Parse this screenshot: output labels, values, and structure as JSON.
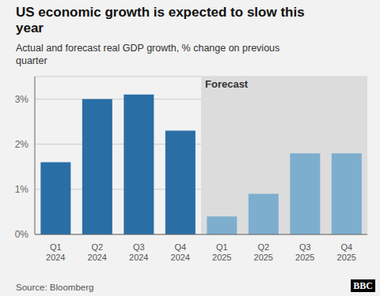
{
  "chart_data": {
    "type": "bar",
    "title": "US economic growth is expected to slow this\nyear",
    "subtitle": "Actual and forecast real GDP growth, % change on previous\nquarter",
    "categories": [
      "Q1\n2024",
      "Q2\n2024",
      "Q3\n2024",
      "Q4\n2024",
      "Q1\n2025",
      "Q2\n2025",
      "Q3\n2025",
      "Q4\n2025"
    ],
    "values": [
      1.6,
      3.0,
      3.1,
      2.3,
      0.4,
      0.9,
      1.8,
      1.8
    ],
    "colors": [
      "#2A6EA6",
      "#2A6EA6",
      "#2A6EA6",
      "#2A6EA6",
      "#7EAECE",
      "#7EAECE",
      "#7EAECE",
      "#7EAECE"
    ],
    "ylim": [
      0,
      3.5
    ],
    "yticks": [
      {
        "value": 0,
        "label": "0%"
      },
      {
        "value": 1,
        "label": "1%"
      },
      {
        "value": 2,
        "label": "2%"
      },
      {
        "value": 3,
        "label": "3%"
      }
    ],
    "grid": true,
    "annotations": [
      {
        "text": "Forecast",
        "x": "Q1\n2025"
      },
      {
        "text": "Source: Bloomberg"
      },
      {
        "text": "BBC"
      }
    ]
  }
}
